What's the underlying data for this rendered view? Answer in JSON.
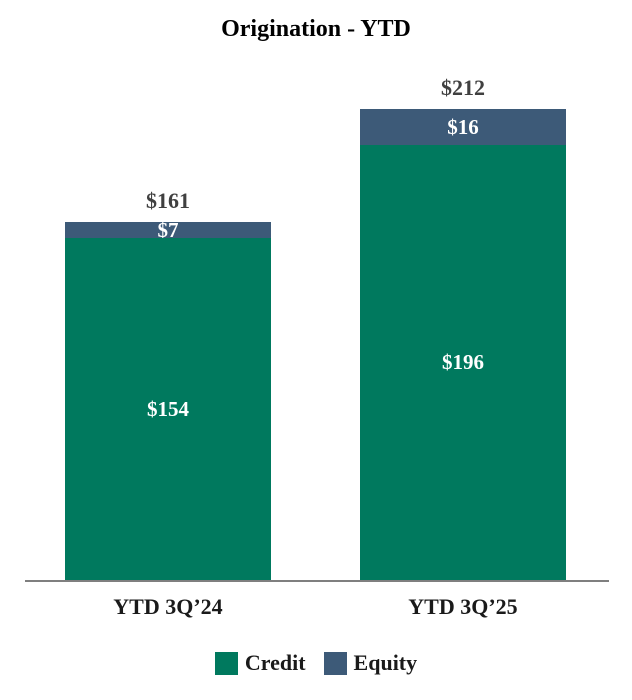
{
  "title": "Origination - YTD",
  "colors": {
    "credit": "#00795E",
    "equity": "#3D5A78",
    "total_label": "#404040",
    "axis": "#7f7f7f",
    "inside_label": "#ffffff"
  },
  "chart_data": {
    "type": "bar",
    "stacked": true,
    "title": "Origination - YTD",
    "categories": [
      "YTD 3Q’24",
      "YTD 3Q’25"
    ],
    "series": [
      {
        "name": "Credit",
        "values": [
          154,
          196
        ],
        "color": "#00795E"
      },
      {
        "name": "Equity",
        "values": [
          7,
          16
        ],
        "color": "#3D5A78"
      }
    ],
    "totals": [
      161,
      212
    ],
    "value_prefix": "$",
    "xlabel": "",
    "ylabel": "",
    "grid": false,
    "legend_position": "bottom"
  },
  "display": {
    "total_labels": [
      "$161",
      "$212"
    ],
    "credit_labels": [
      "$154",
      "$196"
    ],
    "equity_labels": [
      "$7",
      "$16"
    ]
  },
  "legend": {
    "credit_label": "Credit",
    "equity_label": "Equity"
  }
}
